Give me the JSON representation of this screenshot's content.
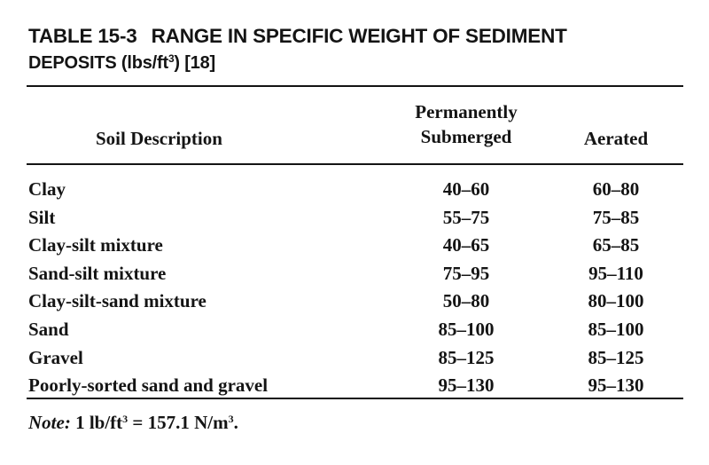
{
  "title": {
    "label": "TABLE 15-3",
    "line1": "RANGE IN SPECIFIC WEIGHT OF SEDIMENT",
    "line2_prefix": "DEPOSITS (lbs/ft",
    "line2_sup": "3",
    "line2_suffix": ") [18]"
  },
  "table": {
    "headers": {
      "description": "Soil Description",
      "submerged_line1": "Permanently",
      "submerged_line2": "Submerged",
      "aerated": "Aerated"
    },
    "rows": [
      {
        "description": "Clay",
        "submerged": "40–60",
        "aerated": "60–80"
      },
      {
        "description": "Silt",
        "submerged": "55–75",
        "aerated": "75–85"
      },
      {
        "description": "Clay-silt mixture",
        "submerged": "40–65",
        "aerated": "65–85"
      },
      {
        "description": "Sand-silt mixture",
        "submerged": "75–95",
        "aerated": "95–110"
      },
      {
        "description": "Clay-silt-sand mixture",
        "submerged": "50–80",
        "aerated": "80–100"
      },
      {
        "description": "Sand",
        "submerged": "85–100",
        "aerated": "85–100"
      },
      {
        "description": "Gravel",
        "submerged": "85–125",
        "aerated": "85–125"
      },
      {
        "description": "Poorly-sorted sand and gravel",
        "submerged": "95–130",
        "aerated": "95–130"
      }
    ]
  },
  "note": {
    "label": "Note:",
    "text_prefix": " 1 lb/ft",
    "sup1": "3",
    "text_middle": " = 157.1 N/m",
    "sup2": "3",
    "text_suffix": "."
  }
}
